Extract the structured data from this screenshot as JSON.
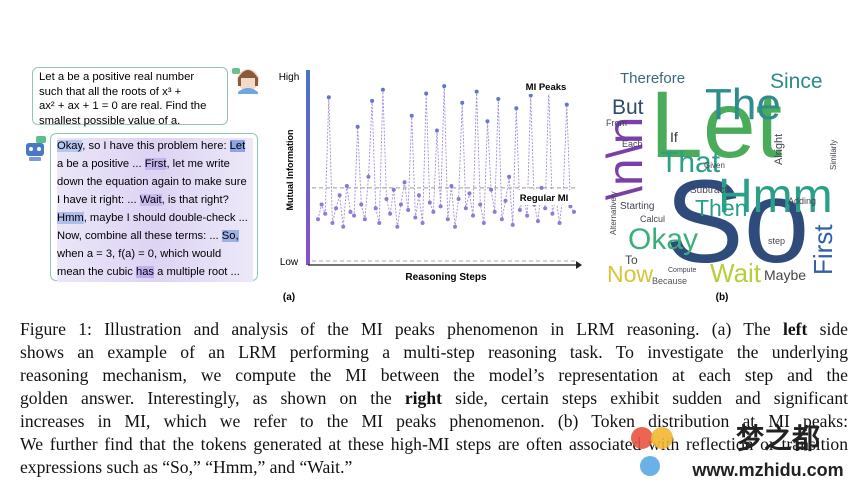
{
  "problem": [
    "Let a be a positive real number",
    "such that all the roots of x³ +",
    "ax² + ax + 1 = 0 are real. Find the",
    "smallest possible value of a."
  ],
  "response": [
    [
      "Okay",
      ", so I have this problem here: ",
      "Let"
    ],
    [
      "a be a positive ... ",
      "First",
      ", let me write"
    ],
    [
      "down the equation again to make sure"
    ],
    [
      "I have it right: ... ",
      "Wait",
      ", is that right?"
    ],
    [
      "Hmm",
      ", maybe I should double-check ..."
    ],
    [
      "Now, combine all these terms: ... ",
      "So,"
    ],
    [
      "when a = 3, f(a) = 0, which would"
    ],
    [
      "mean the cubic ",
      "has",
      " a multiple root ..."
    ]
  ],
  "panel_a": {
    "type": "line",
    "y_label_top": "High",
    "y_label_bottom": "Low",
    "y_axis_label": "Mutual Information",
    "x_axis_label": "Reasoning Steps",
    "peak_label": "MI Peaks",
    "regular_label": "Regular MI",
    "panel_label": "(a)",
    "ylim": [
      0,
      100
    ],
    "threshold": 39,
    "values": [
      22,
      30,
      25,
      88,
      20,
      28,
      35,
      18,
      40,
      26,
      24,
      72,
      30,
      22,
      45,
      86,
      28,
      20,
      92,
      33,
      25,
      38,
      18,
      30,
      42,
      27,
      78,
      23,
      35,
      20,
      90,
      31,
      26,
      70,
      29,
      94,
      22,
      40,
      18,
      33,
      85,
      28,
      36,
      24,
      91,
      30,
      20,
      75,
      38,
      26,
      87,
      22,
      32,
      45,
      19,
      82,
      27,
      35,
      24,
      89,
      30,
      21,
      39,
      28,
      93,
      25,
      33,
      20,
      36,
      84,
      29,
      26
    ]
  },
  "panel_b": {
    "words": [
      "So",
      "Let",
      "Hmm",
      "The",
      "Since",
      "Therefore",
      "But",
      "\\n\\n",
      "That",
      "Then",
      "Okay",
      "First",
      "Wait",
      "Now",
      "Maybe",
      "Because",
      "Subtract",
      "Adding",
      "Starting",
      "If",
      "Alright",
      "From",
      "Each",
      "To",
      "Calcul",
      "Similarly",
      "Alternatively",
      "Given",
      "step",
      "Compute"
    ],
    "panel_label": "(b)"
  },
  "caption": [
    [
      "Figure 1: Illustration and analysis of the MI peaks phenomenon in LRM reasoning. (a) The ",
      "left",
      " side"
    ],
    [
      "shows an example of an LRM performing a multi-step reasoning task. To investigate the underlying"
    ],
    [
      "reasoning mechanism, we compute the MI between the model’s representation at each step and the"
    ],
    [
      "golden answer. Interestingly, as shown on the ",
      "right",
      " side, certain steps exhibit sudden and significant"
    ],
    [
      "increases in MI, which we refer to the MI peaks phenomenon. (b) Token distribution at MI peaks:"
    ],
    [
      "We further find that the tokens generated at these high-MI steps are often associated with reflection or transition"
    ],
    [
      "expressions such as “So,” “Hmm,” and “Wait.”"
    ]
  ],
  "watermark": {
    "name": "梦之都",
    "url": "www.mzhidu.com"
  }
}
